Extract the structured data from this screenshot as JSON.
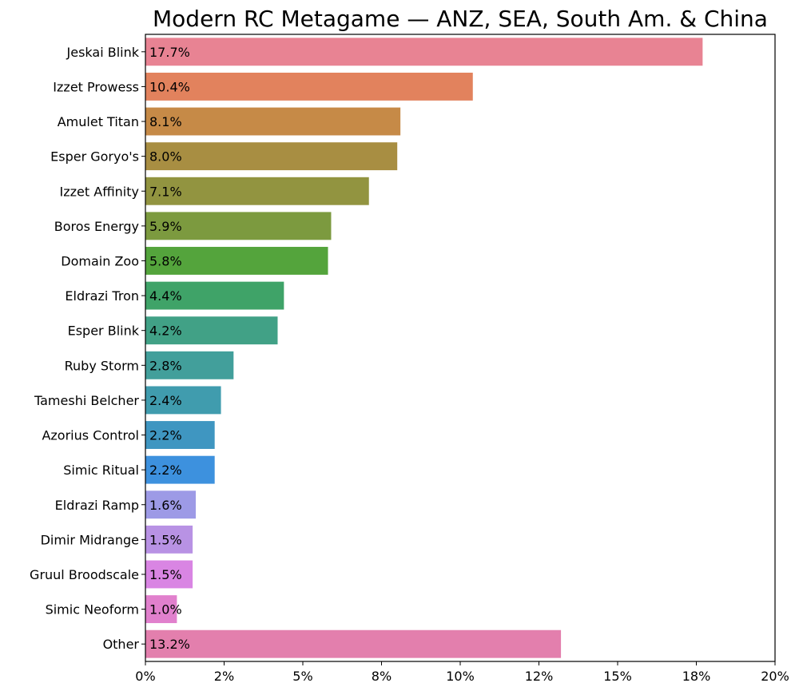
{
  "chart_data": {
    "type": "bar",
    "orientation": "horizontal",
    "title": "Modern RC Metagame — ANZ, SEA, South Am. & China",
    "xlabel": "",
    "ylabel": "",
    "xlim": [
      0,
      20
    ],
    "x_ticks": [
      "0%",
      "2%",
      "5%",
      "8%",
      "10%",
      "12%",
      "15%",
      "18%",
      "20%"
    ],
    "grid": false,
    "categories": [
      "Jeskai Blink",
      "Izzet Prowess",
      "Amulet Titan",
      "Esper Goryo's",
      "Izzet Affinity",
      "Boros Energy",
      "Domain Zoo",
      "Eldrazi Tron",
      "Esper Blink",
      "Ruby Storm",
      "Tameshi Belcher",
      "Azorius Control",
      "Simic Ritual",
      "Eldrazi Ramp",
      "Dimir Midrange",
      "Gruul Broodscale",
      "Simic Neoform",
      "Other"
    ],
    "values": [
      17.7,
      10.4,
      8.1,
      8.0,
      7.1,
      5.9,
      5.8,
      4.4,
      4.2,
      2.8,
      2.4,
      2.2,
      2.2,
      1.6,
      1.5,
      1.5,
      1.0,
      13.2
    ],
    "data_labels": [
      "17.7%",
      "10.4%",
      "8.1%",
      "8.0%",
      "7.1%",
      "5.9%",
      "5.8%",
      "4.4%",
      "4.2%",
      "2.8%",
      "2.4%",
      "2.2%",
      "2.2%",
      "1.6%",
      "1.5%",
      "1.5%",
      "1.0%",
      "13.2%"
    ],
    "colors": [
      "#e88393",
      "#e2825d",
      "#c68a47",
      "#a88e42",
      "#929440",
      "#7c9a3f",
      "#54a43c",
      "#3fa368",
      "#41a186",
      "#429f9b",
      "#409cae",
      "#3f96c1",
      "#3d91de",
      "#9d9ae6",
      "#b892e4",
      "#d985e3",
      "#e180cd",
      "#e37fad"
    ]
  }
}
